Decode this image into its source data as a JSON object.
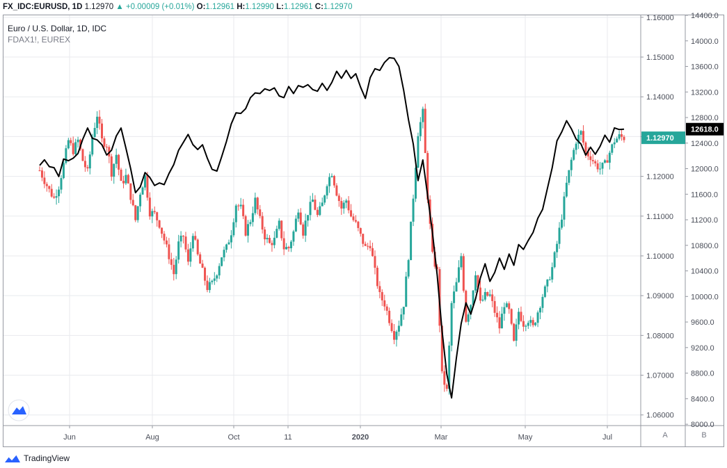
{
  "header": {
    "symbol": "FX_IDC:EURUSD, 1D",
    "last": "1.12970",
    "change": "+0.00009 (+0.01%)",
    "o_label": "O:",
    "o_value": "1.12961",
    "h_label": "H:",
    "h_value": "1.12990",
    "l_label": "L:",
    "l_value": "1.12961",
    "c_label": "C:",
    "c_value": "1.12970"
  },
  "legend": {
    "main": "Euro / U.S. Dollar, 1D, IDC",
    "compare": "FDAX1!, EUREX"
  },
  "footer": {
    "brand": "TradingView"
  },
  "scale_buttons": {
    "a": "A",
    "b": "B"
  },
  "colors": {
    "up": "#26a69a",
    "down": "#ef5350",
    "line": "#000000",
    "grid": "#e8eaee",
    "axis_text": "#4a4e59"
  },
  "chart_data": {
    "type": "line",
    "title": "",
    "x_tick_labels": [
      "Jun",
      "Aug",
      "Oct",
      "11",
      "2020",
      "Mar",
      "May",
      "Jul"
    ],
    "left_axis": {
      "ticks": [
        "1.16000",
        "1.15000",
        "1.14000",
        "1.13000",
        "1.12000",
        "1.11000",
        "1.10000",
        "1.09000",
        "1.08000",
        "1.07000",
        "1.06000"
      ],
      "range": [
        1.0575,
        1.1605
      ],
      "last_value_label": "1.12970"
    },
    "right_axis": {
      "ticks": [
        "14400.0",
        "14000.0",
        "13600.0",
        "13200.0",
        "12800.0",
        "12400.0",
        "12000.0",
        "11600.0",
        "11200.0",
        "10800.0",
        "10400.0",
        "10000.0",
        "9600.0",
        "9200.0",
        "8800.0",
        "8400.0",
        "8000.0"
      ],
      "range": [
        7990,
        14400
      ],
      "last_value_label": "12618.0"
    },
    "series": [
      {
        "name": "Euro / U.S. Dollar, 1D, IDC",
        "type": "candlestick",
        "axis": "left",
        "closes": [
          [
            0,
            1.1215
          ],
          [
            5,
            1.119
          ],
          [
            10,
            1.1165
          ],
          [
            15,
            1.1145
          ],
          [
            20,
            1.1175
          ],
          [
            25,
            1.123
          ],
          [
            30,
            1.129
          ],
          [
            35,
            1.1265
          ],
          [
            40,
            1.129
          ],
          [
            45,
            1.124
          ],
          [
            50,
            1.121
          ],
          [
            55,
            1.13
          ],
          [
            60,
            1.1355
          ],
          [
            65,
            1.129
          ],
          [
            70,
            1.128
          ],
          [
            75,
            1.121
          ],
          [
            80,
            1.1255
          ],
          [
            85,
            1.118
          ],
          [
            90,
            1.12
          ],
          [
            95,
            1.115
          ],
          [
            100,
            1.109
          ],
          [
            105,
            1.116
          ],
          [
            110,
            1.12
          ],
          [
            115,
            1.111
          ],
          [
            120,
            1.1105
          ],
          [
            125,
            1.108
          ],
          [
            130,
            1.104
          ],
          [
            135,
            1.1
          ],
          [
            140,
            1.0955
          ],
          [
            145,
            1.103
          ],
          [
            150,
            1.105
          ],
          [
            155,
            1.098
          ],
          [
            160,
            1.106
          ],
          [
            165,
            1.1
          ],
          [
            170,
            1.096
          ],
          [
            175,
            1.092
          ],
          [
            180,
            1.093
          ],
          [
            185,
            1.096
          ],
          [
            190,
            1.1
          ],
          [
            195,
            1.102
          ],
          [
            200,
            1.106
          ],
          [
            205,
            1.113
          ],
          [
            210,
            1.112
          ],
          [
            215,
            1.106
          ],
          [
            220,
            1.109
          ],
          [
            225,
            1.114
          ],
          [
            230,
            1.109
          ],
          [
            235,
            1.105
          ],
          [
            240,
            1.103
          ],
          [
            245,
            1.104
          ],
          [
            250,
            1.108
          ],
          [
            255,
            1.102
          ],
          [
            260,
            1.102
          ],
          [
            265,
            1.106
          ],
          [
            270,
            1.112
          ],
          [
            275,
            1.106
          ],
          [
            280,
            1.111
          ],
          [
            285,
            1.114
          ],
          [
            290,
            1.11
          ],
          [
            295,
            1.113
          ],
          [
            300,
            1.1185
          ],
          [
            305,
            1.121
          ],
          [
            310,
            1.116
          ],
          [
            315,
            1.112
          ],
          [
            320,
            1.114
          ],
          [
            325,
            1.11
          ],
          [
            330,
            1.108
          ],
          [
            335,
            1.105
          ],
          [
            340,
            1.102
          ],
          [
            345,
            1.103
          ],
          [
            350,
            1.096
          ],
          [
            355,
            1.09
          ],
          [
            360,
            1.088
          ],
          [
            365,
            1.084
          ],
          [
            370,
            1.08
          ],
          [
            375,
            1.083
          ],
          [
            380,
            1.088
          ],
          [
            385,
            1.1
          ],
          [
            390,
            1.115
          ],
          [
            395,
            1.131
          ],
          [
            400,
            1.136
          ],
          [
            405,
            1.115
          ],
          [
            410,
            1.1
          ],
          [
            415,
            1.096
          ],
          [
            420,
            1.07
          ],
          [
            425,
            1.066
          ],
          [
            430,
            1.088
          ],
          [
            435,
            1.093
          ],
          [
            440,
            1.1
          ],
          [
            445,
            1.084
          ],
          [
            450,
            1.088
          ],
          [
            455,
            1.096
          ],
          [
            460,
            1.088
          ],
          [
            465,
            1.09
          ],
          [
            470,
            1.09
          ],
          [
            475,
            1.086
          ],
          [
            480,
            1.082
          ],
          [
            485,
            1.088
          ],
          [
            490,
            1.086
          ],
          [
            495,
            1.078
          ],
          [
            500,
            1.086
          ],
          [
            505,
            1.083
          ],
          [
            510,
            1.084
          ],
          [
            515,
            1.082
          ],
          [
            520,
            1.086
          ],
          [
            525,
            1.09
          ],
          [
            530,
            1.093
          ],
          [
            535,
            1.097
          ],
          [
            540,
            1.103
          ],
          [
            545,
            1.11
          ],
          [
            550,
            1.118
          ],
          [
            555,
            1.124
          ],
          [
            560,
            1.129
          ],
          [
            565,
            1.131
          ],
          [
            570,
            1.126
          ],
          [
            575,
            1.125
          ],
          [
            580,
            1.123
          ],
          [
            585,
            1.122
          ],
          [
            590,
            1.123
          ],
          [
            595,
            1.126
          ],
          [
            600,
            1.129
          ],
          [
            605,
            1.13
          ],
          [
            610,
            1.1297
          ]
        ]
      },
      {
        "name": "FDAX1!, EUREX",
        "type": "line",
        "axis": "right",
        "values": [
          [
            0,
            12050
          ],
          [
            5,
            12150
          ],
          [
            10,
            12020
          ],
          [
            15,
            11980
          ],
          [
            20,
            11900
          ],
          [
            25,
            12150
          ],
          [
            30,
            12100
          ],
          [
            35,
            12200
          ],
          [
            40,
            12250
          ],
          [
            45,
            12450
          ],
          [
            50,
            12600
          ],
          [
            55,
            12500
          ],
          [
            60,
            12450
          ],
          [
            65,
            12350
          ],
          [
            70,
            12250
          ],
          [
            75,
            12300
          ],
          [
            80,
            12500
          ],
          [
            85,
            12600
          ],
          [
            90,
            12350
          ],
          [
            95,
            12000
          ],
          [
            100,
            11600
          ],
          [
            105,
            11750
          ],
          [
            110,
            11950
          ],
          [
            115,
            11850
          ],
          [
            120,
            11700
          ],
          [
            125,
            11800
          ],
          [
            130,
            11750
          ],
          [
            135,
            11900
          ],
          [
            140,
            12100
          ],
          [
            145,
            12300
          ],
          [
            150,
            12400
          ],
          [
            155,
            12500
          ],
          [
            160,
            12400
          ],
          [
            165,
            12300
          ],
          [
            170,
            12350
          ],
          [
            175,
            12200
          ],
          [
            180,
            12000
          ],
          [
            185,
            11950
          ],
          [
            190,
            12150
          ],
          [
            195,
            12450
          ],
          [
            200,
            12700
          ],
          [
            205,
            12850
          ],
          [
            210,
            12900
          ],
          [
            215,
            12950
          ],
          [
            220,
            13100
          ],
          [
            225,
            13150
          ],
          [
            230,
            13200
          ],
          [
            235,
            13250
          ],
          [
            240,
            13200
          ],
          [
            245,
            13300
          ],
          [
            250,
            13150
          ],
          [
            255,
            13100
          ],
          [
            260,
            13250
          ],
          [
            265,
            13200
          ],
          [
            270,
            13300
          ],
          [
            275,
            13250
          ],
          [
            280,
            13350
          ],
          [
            285,
            13250
          ],
          [
            290,
            13200
          ],
          [
            295,
            13300
          ],
          [
            300,
            13250
          ],
          [
            305,
            13350
          ],
          [
            310,
            13500
          ],
          [
            315,
            13450
          ],
          [
            320,
            13550
          ],
          [
            325,
            13400
          ],
          [
            330,
            13450
          ],
          [
            335,
            13300
          ],
          [
            340,
            13100
          ],
          [
            345,
            13400
          ],
          [
            350,
            13600
          ],
          [
            355,
            13550
          ],
          [
            360,
            13650
          ],
          [
            365,
            13700
          ],
          [
            370,
            13750
          ],
          [
            375,
            13600
          ],
          [
            380,
            13200
          ],
          [
            385,
            12800
          ],
          [
            390,
            12400
          ],
          [
            395,
            11800
          ],
          [
            400,
            12100
          ],
          [
            405,
            11600
          ],
          [
            410,
            11000
          ],
          [
            415,
            10300
          ],
          [
            420,
            9500
          ],
          [
            425,
            8800
          ],
          [
            430,
            8400
          ],
          [
            435,
            9000
          ],
          [
            440,
            9600
          ],
          [
            445,
            9900
          ],
          [
            450,
            9700
          ],
          [
            455,
            10000
          ],
          [
            460,
            10300
          ],
          [
            465,
            10500
          ],
          [
            470,
            10200
          ],
          [
            475,
            10400
          ],
          [
            480,
            10600
          ],
          [
            485,
            10400
          ],
          [
            490,
            10700
          ],
          [
            495,
            10500
          ],
          [
            500,
            10800
          ],
          [
            505,
            10700
          ],
          [
            510,
            10900
          ],
          [
            515,
            11000
          ],
          [
            520,
            11200
          ],
          [
            525,
            11400
          ],
          [
            530,
            11700
          ],
          [
            535,
            12000
          ],
          [
            540,
            12400
          ],
          [
            545,
            12600
          ],
          [
            550,
            12750
          ],
          [
            555,
            12600
          ],
          [
            560,
            12500
          ],
          [
            565,
            12400
          ],
          [
            570,
            12200
          ],
          [
            575,
            12300
          ],
          [
            580,
            12250
          ],
          [
            585,
            12350
          ],
          [
            590,
            12500
          ],
          [
            595,
            12450
          ],
          [
            600,
            12650
          ],
          [
            605,
            12600
          ],
          [
            610,
            12618
          ]
        ]
      }
    ],
    "grid": true,
    "legend_position": "top-left"
  }
}
